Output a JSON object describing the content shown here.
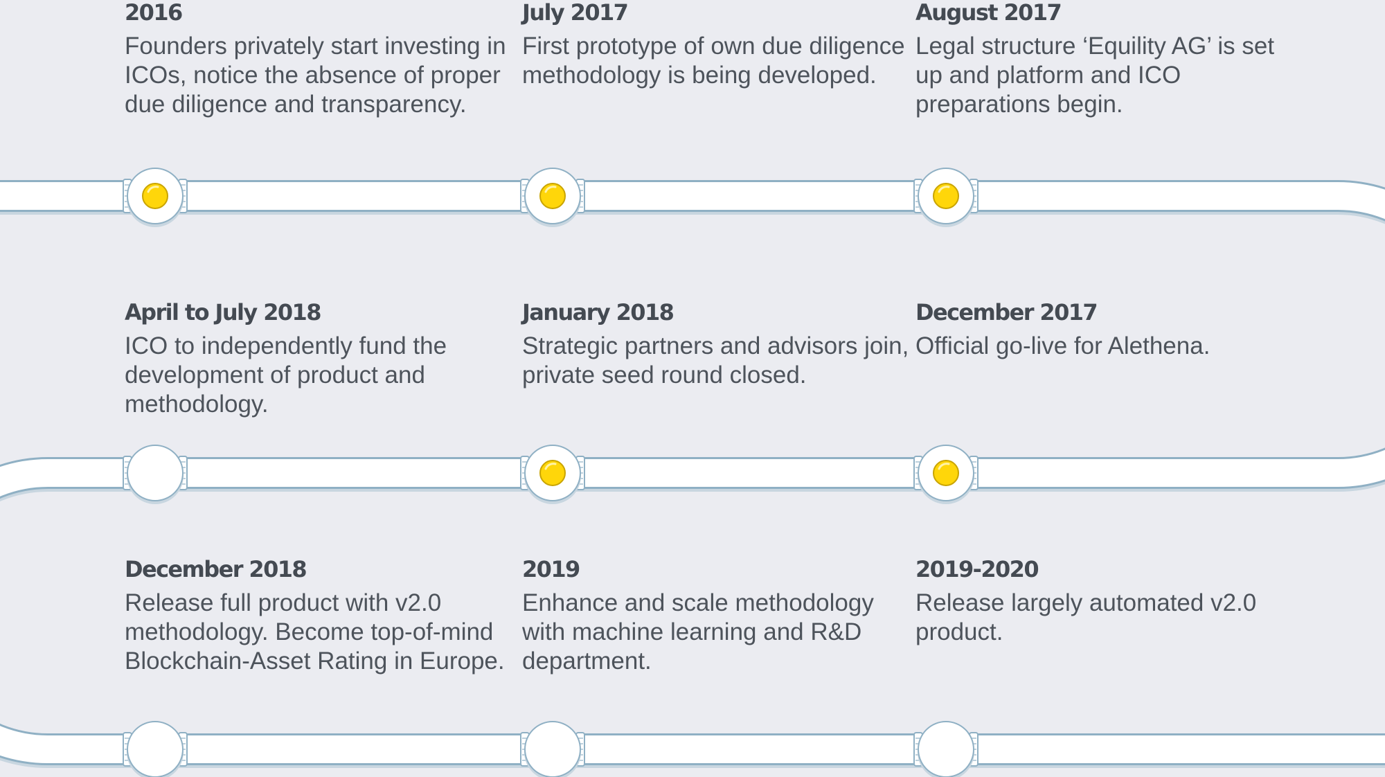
{
  "timeline": {
    "rows": [
      {
        "milestones": [
          {
            "date": "2016",
            "description": "Founders privately start investing in ICOs, notice the absence of proper due diligence and transparency.",
            "completed": true
          },
          {
            "date": "July 2017",
            "description": "First prototype of own due diligence methodology is being developed.",
            "completed": true
          },
          {
            "date": "August 2017",
            "description": "Legal structure ‘Equility AG’ is set up and platform and ICO preparations begin.",
            "completed": true
          }
        ]
      },
      {
        "milestones": [
          {
            "date": "April to July 2018",
            "description": "ICO to independently fund the development of product and methodology.",
            "completed": false
          },
          {
            "date": "January 2018",
            "description": "Strategic partners and advisors join, private seed round closed.",
            "completed": true
          },
          {
            "date": "December 2017",
            "description": "Official go-live for Alethena.",
            "completed": true
          }
        ]
      },
      {
        "milestones": [
          {
            "date": "December 2018",
            "description": "Release full product with v2.0 methodology. Become top-of-mind Blockchain-Asset Rating in Europe.",
            "completed": false
          },
          {
            "date": "2019",
            "description": "Enhance and scale methodology with machine learning and R&D department.",
            "completed": false
          },
          {
            "date": "2019-2020",
            "description": "Release largely automated v2.0 product.",
            "completed": false
          }
        ]
      }
    ]
  },
  "colors": {
    "background": "#ebecf1",
    "pipe_fill": "#ffffff",
    "pipe_outline": "#8fb0c4",
    "pipe_shadow": "#c8d6e0",
    "node_active": "#ffd60a",
    "node_active_ring": "#c9a400",
    "date_text": "#444a52",
    "description_text": "#4d535b"
  }
}
